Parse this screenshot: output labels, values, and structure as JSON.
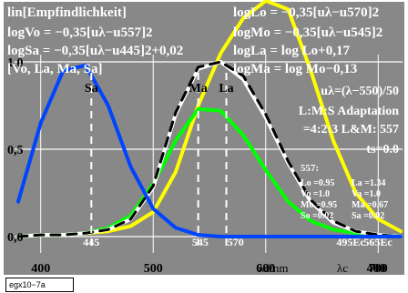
{
  "chart_data": {
    "type": "line",
    "x": [
      380,
      400,
      420,
      440,
      460,
      480,
      500,
      520,
      540,
      560,
      580,
      600,
      620,
      640,
      660,
      680,
      700,
      720
    ],
    "series": [
      {
        "color": "#ffff00",
        "values": [
          0.0,
          0.01,
          0.01,
          0.02,
          0.03,
          0.06,
          0.14,
          0.37,
          0.75,
          1.05,
          1.25,
          1.35,
          1.3,
          0.95,
          0.55,
          0.25,
          0.1,
          0.03
        ]
      },
      {
        "color": "#00ff00",
        "values": [
          0.0,
          0.01,
          0.01,
          0.02,
          0.05,
          0.12,
          0.3,
          0.55,
          0.73,
          0.72,
          0.58,
          0.38,
          0.2,
          0.09,
          0.04,
          0.02,
          0.01,
          0.0
        ]
      },
      {
        "color": "#ffffff",
        "values": [
          0.0,
          0.01,
          0.01,
          0.02,
          0.04,
          0.1,
          0.28,
          0.7,
          0.96,
          1.0,
          0.9,
          0.68,
          0.42,
          0.2,
          0.08,
          0.03,
          0.01,
          0.0
        ]
      },
      {
        "color": "#000000",
        "values": [
          0.0,
          0.01,
          0.01,
          0.02,
          0.04,
          0.1,
          0.29,
          0.71,
          0.97,
          1.0,
          0.92,
          0.7,
          0.43,
          0.21,
          0.09,
          0.03,
          0.01,
          0.0
        ]
      },
      {
        "color": "#0044ff",
        "values": [
          0.2,
          0.65,
          0.95,
          0.98,
          0.75,
          0.4,
          0.16,
          0.05,
          0.01,
          0.0,
          0.0,
          0.0,
          0.0,
          0.0,
          0.0,
          0.0,
          0.0,
          0.0
        ]
      }
    ],
    "xlim": [
      380,
      720
    ],
    "ylim": [
      0,
      1.25
    ],
    "x_ticks": [
      "400",
      "500",
      "600",
      "700",
      "400"
    ],
    "x_axis_text": "λd/nm",
    "x_axis_text2": "λc",
    "y_ticks": [
      "0,0",
      "0,5",
      "1,0"
    ],
    "grid": true,
    "markers": [
      {
        "label": "Sa",
        "x": 445
      },
      {
        "label": "Ma",
        "x": 540
      },
      {
        "label": "La",
        "x": 565
      }
    ],
    "bottom_labels": [
      "445",
      "545",
      "570",
      "495Ec",
      "565Ec"
    ],
    "left_text": [
      "lin[Empfindlichkeit]",
      "logVo = −0,35[uλ−u557]2",
      "logSa = −0,35[uλ−u445]2+0,02",
      "[Vo, La, Ma, Sa]"
    ],
    "right_text": [
      "logLo = −0,35[uλ−u570]2",
      "logMo = −0,35[uλ−u545]2",
      "logLa = log Lo+0,17",
      "logMa = log Mo−0,13",
      "uλ=(λ−550)/50",
      "L:M:S  Adaptation",
      "=4:2:3  L&M: 557",
      "ts=0.0"
    ],
    "table_title": "557:",
    "table_rows": [
      [
        "Lo =0.95",
        "La =1.34"
      ],
      [
        "Vo =1.0",
        "Va =1.0"
      ],
      [
        "Mo =0.95",
        "Ma =0.67"
      ],
      [
        "So =0.02",
        "Sa =0.02"
      ]
    ]
  },
  "footer_label": "egx10−7a"
}
